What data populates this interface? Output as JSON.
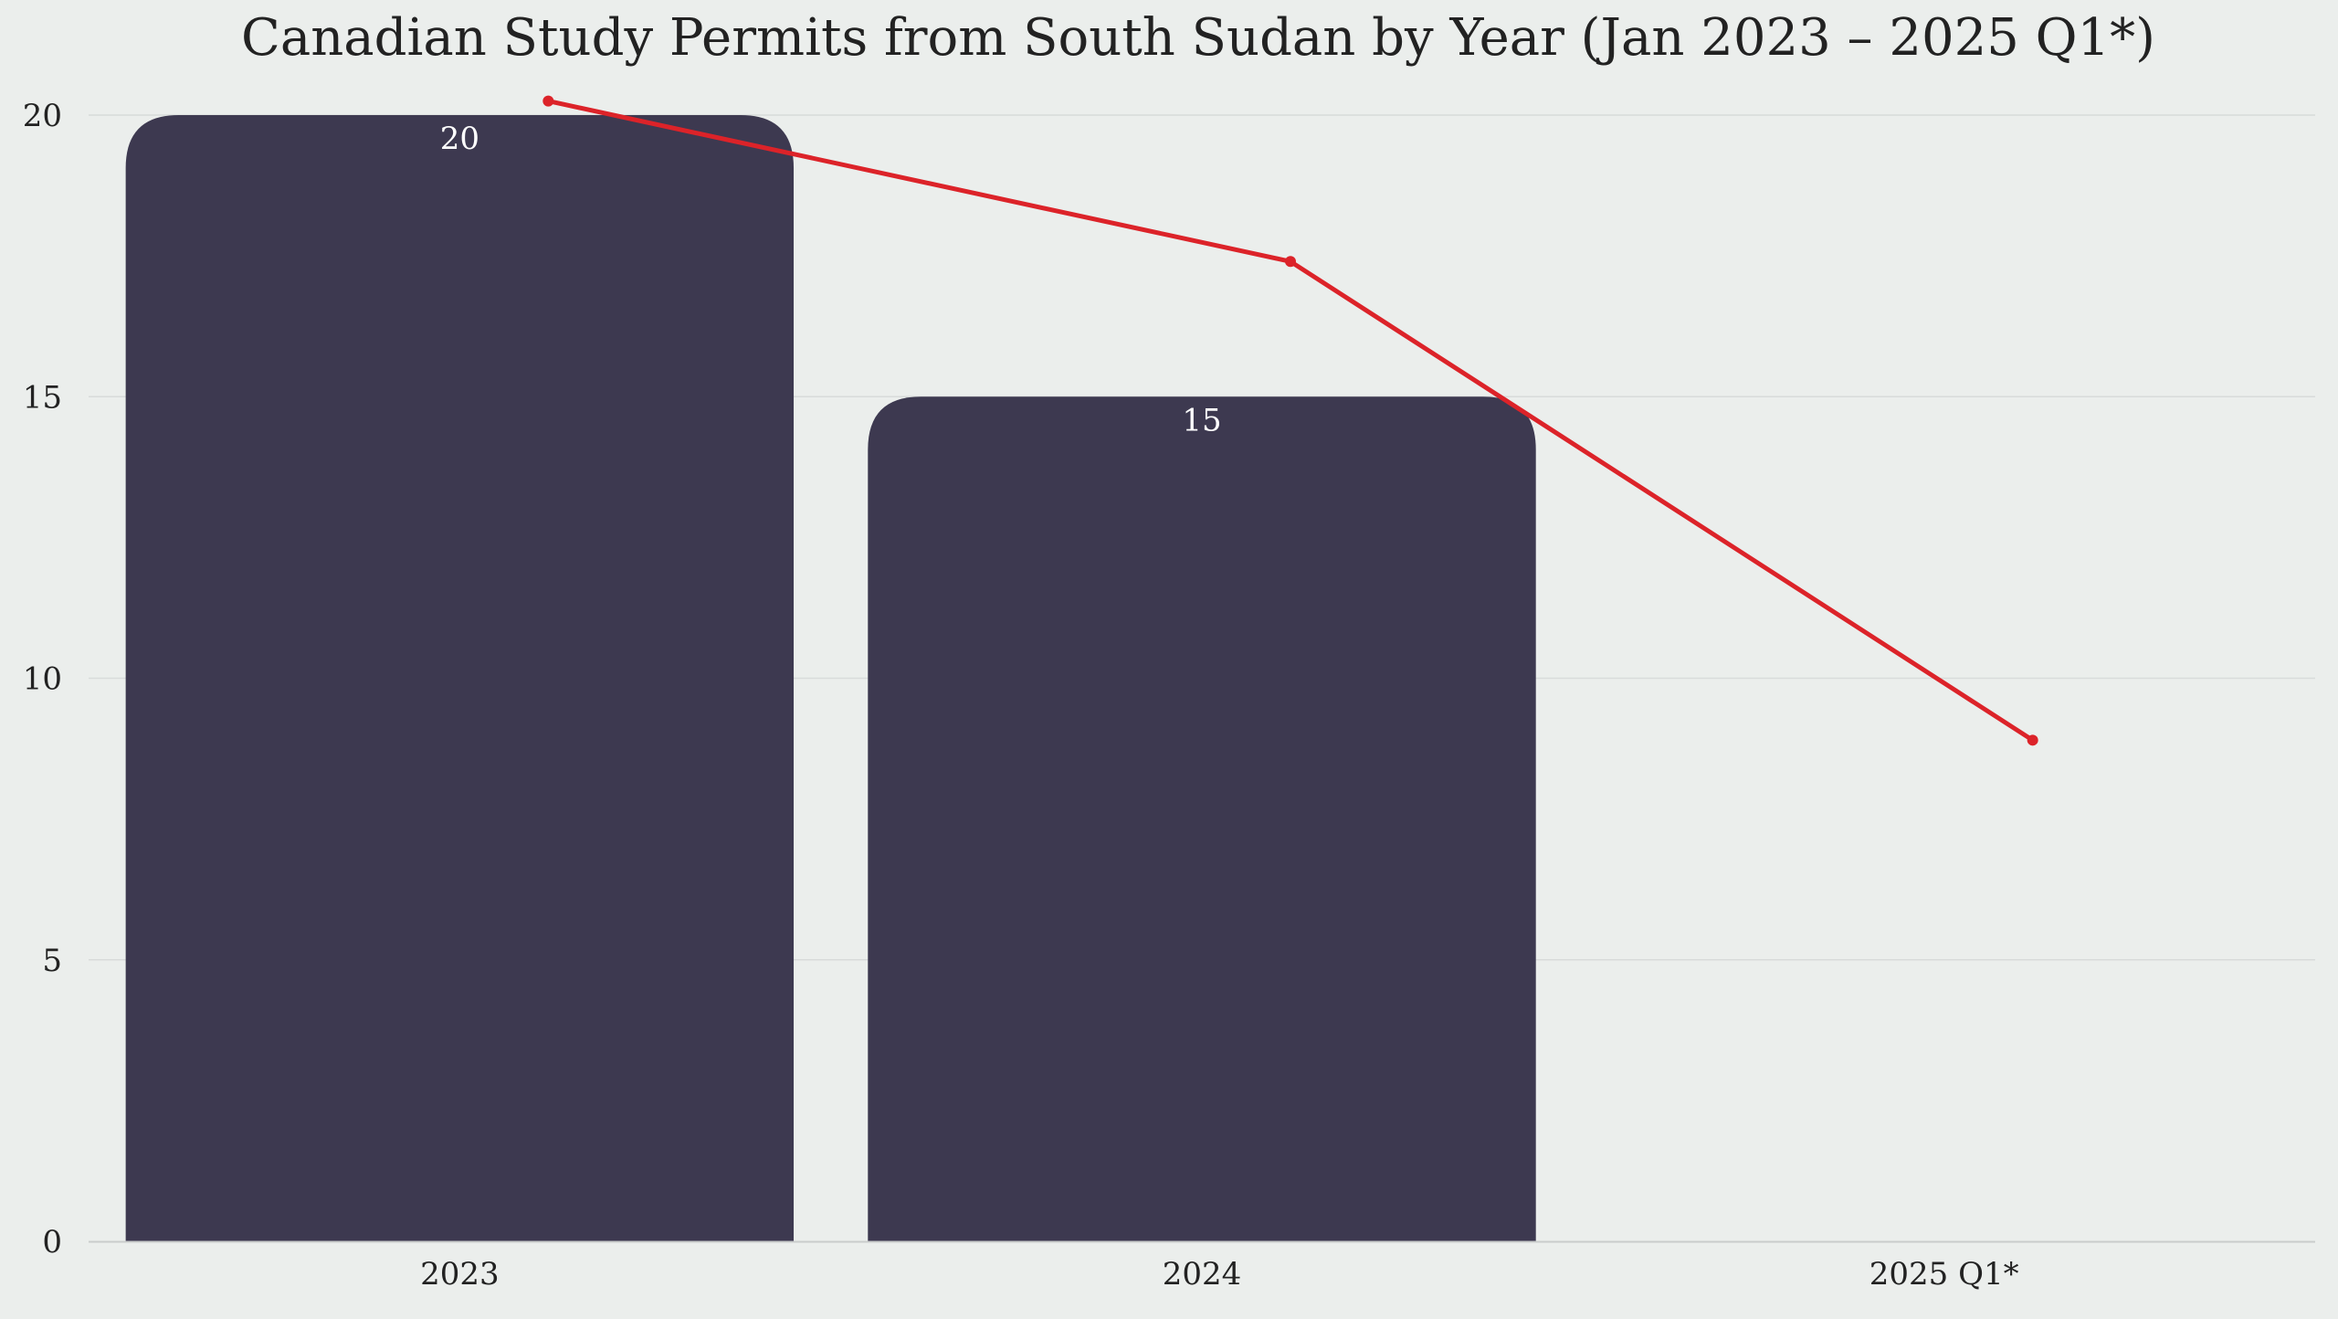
{
  "chart_data": {
    "type": "bar",
    "title": "Canadian Study Permits from South Sudan by Year (Jan 2023 – 2025 Q1*)",
    "xlabel": "",
    "ylabel": "",
    "categories": [
      "2023",
      "2024",
      "2025 Q1*"
    ],
    "series": [
      {
        "type": "bar",
        "values": [
          20,
          15,
          null
        ],
        "data_labels": [
          "20",
          "15",
          ""
        ],
        "color": "#3d3950"
      },
      {
        "type": "line",
        "values": [
          20.25,
          17.4,
          8.9
        ],
        "color": "#dc2329"
      }
    ],
    "ylim": [
      0,
      20.8
    ],
    "yticks": [
      "0",
      "5",
      "10",
      "15",
      "20"
    ],
    "grid": true,
    "legend": "none",
    "colors": {
      "background": "#ebeeec",
      "gridline": "#d8dbda",
      "axis": "#c9cccb",
      "text": "#222222",
      "bar_label": "#ffffff"
    }
  }
}
